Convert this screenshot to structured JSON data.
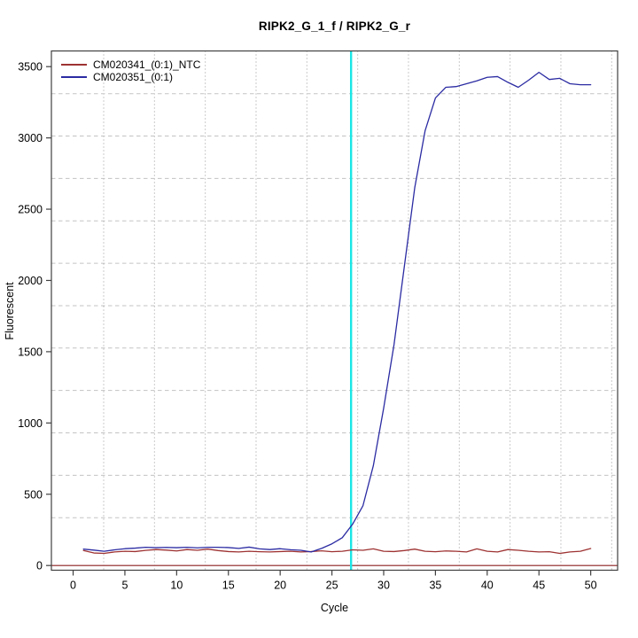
{
  "title": "RIPK2_G_1_f / RIPK2_G_r",
  "chart_data": {
    "type": "line",
    "title": "RIPK2_G_1_f / RIPK2_G_r",
    "xlabel": "Cycle",
    "ylabel": "Fluorescent",
    "xlim": [
      -2.1,
      52.6
    ],
    "ylim": [
      -33,
      3610
    ],
    "xticks": [
      0,
      5,
      10,
      15,
      20,
      25,
      30,
      35,
      40,
      45,
      50
    ],
    "yticks": [
      0,
      500,
      1000,
      1500,
      2000,
      2500,
      3000,
      3500
    ],
    "grid": true,
    "legend_position": "top-left",
    "x": [
      1,
      2,
      3,
      4,
      5,
      6,
      7,
      8,
      9,
      10,
      11,
      12,
      13,
      14,
      15,
      16,
      17,
      18,
      19,
      20,
      21,
      22,
      23,
      24,
      25,
      26,
      27,
      28,
      29,
      30,
      31,
      32,
      33,
      34,
      35,
      36,
      37,
      38,
      39,
      40,
      41,
      42,
      43,
      44,
      45,
      46,
      47,
      48,
      49,
      50
    ],
    "series": [
      {
        "name": "CM020341_(0:1)_NTC",
        "color": "#9e3232",
        "values": [
          105,
          88,
          85,
          95,
          100,
          98,
          106,
          112,
          108,
          102,
          112,
          107,
          115,
          105,
          98,
          95,
          100,
          97,
          95,
          98,
          100,
          95,
          98,
          103,
          97,
          100,
          110,
          107,
          117,
          100,
          98,
          105,
          115,
          100,
          97,
          102,
          100,
          95,
          117,
          100,
          95,
          112,
          107,
          100,
          95,
          97,
          85,
          95,
          100,
          119
        ]
      },
      {
        "name": "CM020351_(0:1)",
        "color": "#2b2ba3",
        "values": [
          115,
          108,
          100,
          110,
          118,
          122,
          128,
          125,
          127,
          125,
          128,
          124,
          128,
          128,
          126,
          120,
          129,
          117,
          112,
          118,
          111,
          107,
          95,
          120,
          152,
          195,
          290,
          420,
          700,
          1105,
          1550,
          2100,
          2650,
          3050,
          3280,
          3355,
          3360,
          3380,
          3400,
          3425,
          3430,
          3390,
          3355,
          3405,
          3460,
          3410,
          3418,
          3380,
          3373,
          3373
        ]
      }
    ],
    "threshold_line": {
      "y": 0,
      "color": "#8b1f1f"
    },
    "ct_line": {
      "x": 26.85,
      "color": "#1ae6e6"
    },
    "colors": {
      "grid_vertical": "#969696",
      "grid_horizontal": "#c3c3c3",
      "plot_border": "#404040",
      "text": "#000000"
    }
  }
}
